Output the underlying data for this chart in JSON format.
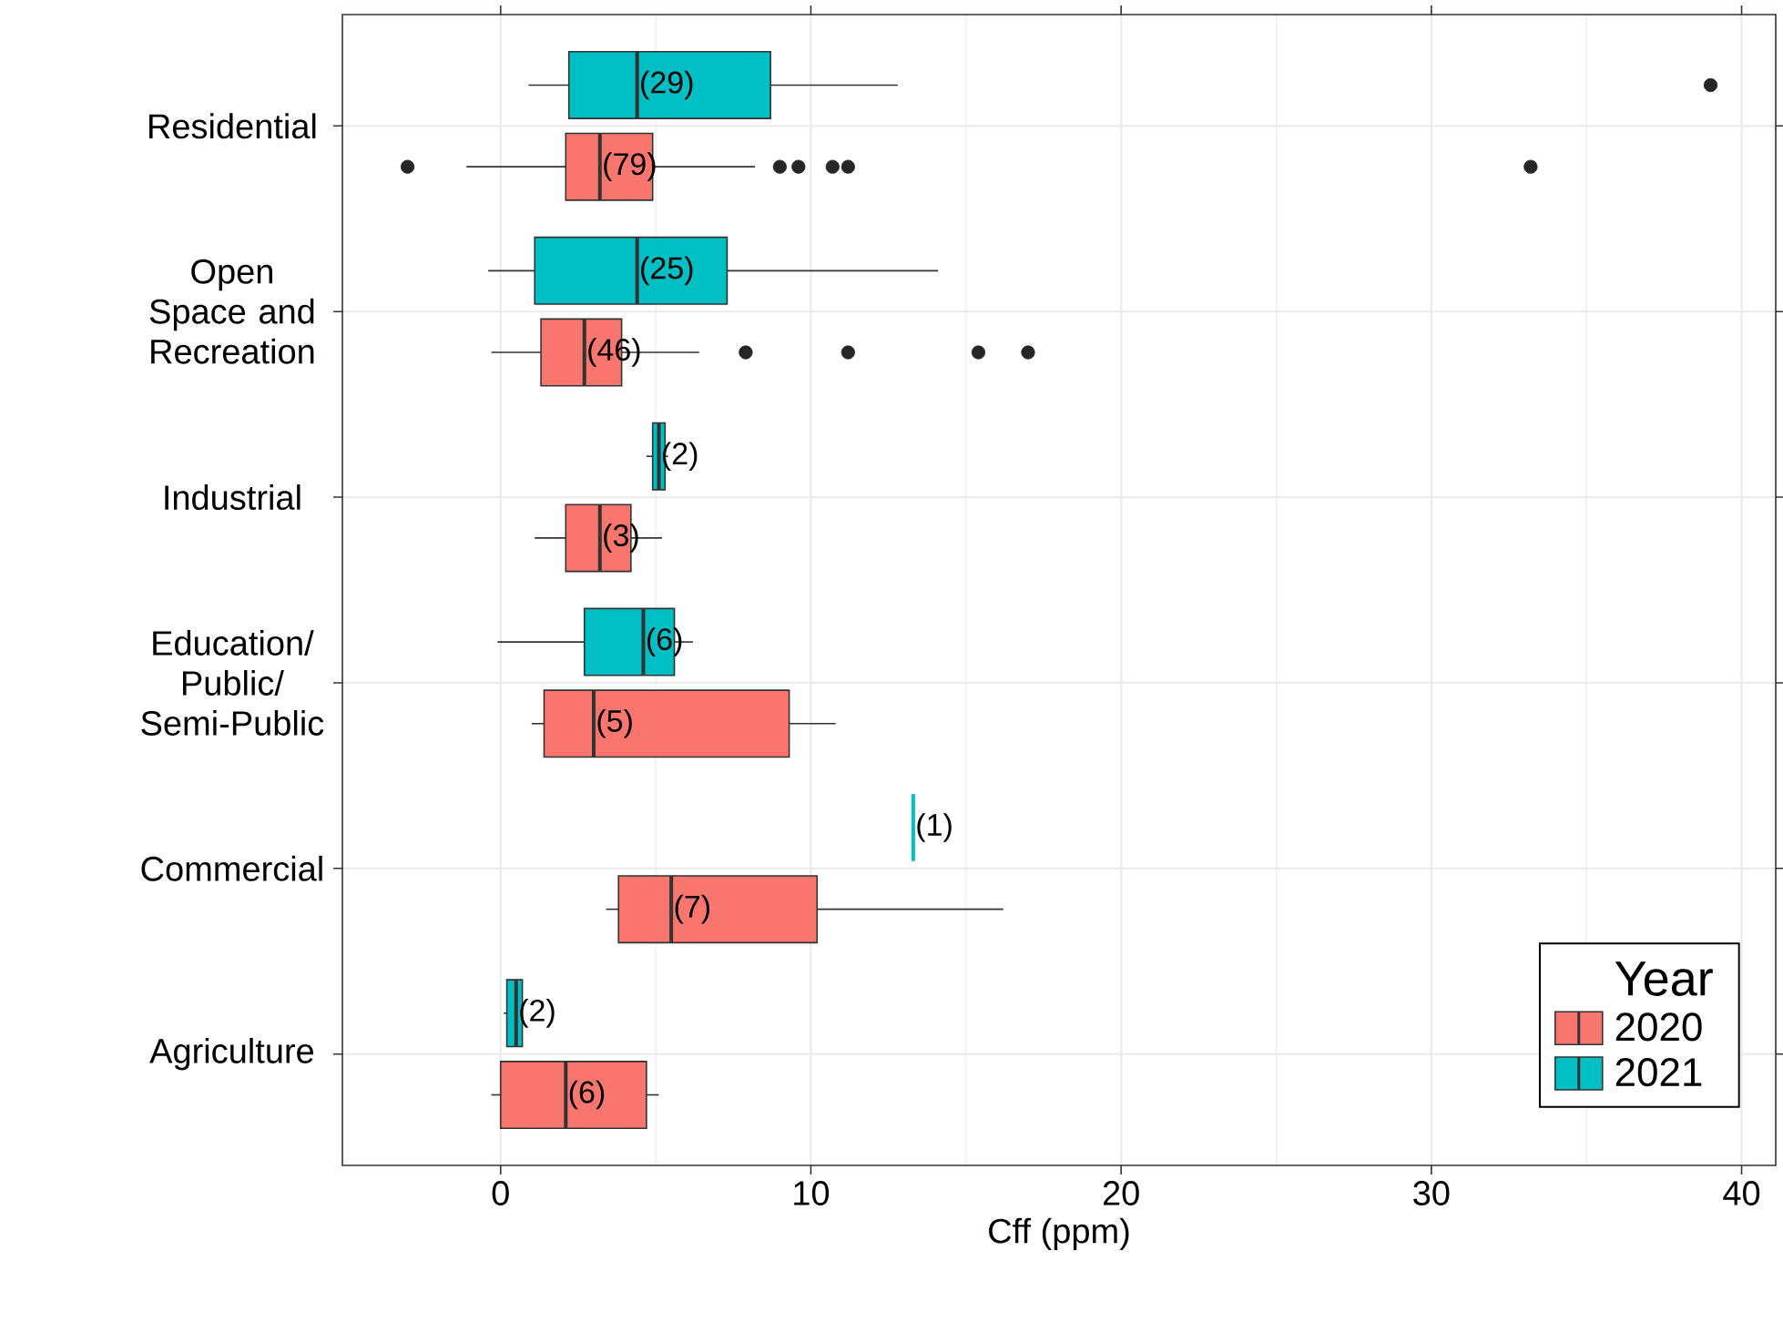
{
  "chart_data": {
    "type": "box",
    "orientation": "horizontal",
    "xlabel": "Cff (ppm)",
    "legend_title": "Year",
    "legend": "bottom right",
    "grid": true,
    "categories": [
      "Residential",
      "Open Space and Recreation",
      "Industrial",
      "Education/ Public/ Semi-Public",
      "Commercial",
      "Agriculture"
    ],
    "xlim": [
      -5.1,
      41.1
    ],
    "xticks": [
      0,
      10,
      20,
      30,
      40
    ],
    "series": [
      {
        "name": "2020",
        "color": "#f8766d",
        "value_labels": [
          "(79)",
          "(46)",
          "(3)",
          "(5)",
          "(7)",
          "(6)"
        ],
        "boxes": [
          {
            "low": -1.1,
            "q1": 2.1,
            "median": 3.2,
            "q3": 4.9,
            "high": 8.2,
            "outliers": [
              -3.0,
              9.0,
              9.6,
              10.7,
              11.2,
              33.2
            ]
          },
          {
            "low": -0.3,
            "q1": 1.3,
            "median": 2.7,
            "q3": 3.9,
            "high": 6.4,
            "outliers": [
              7.9,
              11.2,
              15.4,
              17.0
            ]
          },
          {
            "low": 1.1,
            "q1": 2.1,
            "median": 3.2,
            "q3": 4.2,
            "high": 5.2
          },
          {
            "low": 1.0,
            "q1": 1.4,
            "median": 3.0,
            "q3": 9.3,
            "high": 10.8
          },
          {
            "low": 3.4,
            "q1": 3.8,
            "median": 5.5,
            "q3": 10.2,
            "high": 16.2
          },
          {
            "low": -0.3,
            "q1": 0.0,
            "median": 2.1,
            "q3": 4.7,
            "high": 5.1
          }
        ]
      },
      {
        "name": "2021",
        "color": "#00bfc4",
        "value_labels": [
          "(29)",
          "(25)",
          "(2)",
          "(6)",
          "(1)",
          "(2)"
        ],
        "boxes": [
          {
            "low": 0.9,
            "q1": 2.2,
            "median": 4.4,
            "q3": 8.7,
            "high": 12.8,
            "outliers": [
              39.0
            ]
          },
          {
            "low": -0.4,
            "q1": 1.1,
            "median": 4.4,
            "q3": 7.3,
            "high": 14.1
          },
          {
            "low": 4.7,
            "q1": 4.9,
            "median": 5.1,
            "q3": 5.3,
            "high": 5.4
          },
          {
            "low": -0.1,
            "q1": 2.7,
            "median": 4.6,
            "q3": 5.6,
            "high": 6.2
          },
          {
            "low": 13.3,
            "q1": 13.3,
            "median": 13.3,
            "q3": 13.3,
            "high": 13.3
          },
          {
            "low": 0.1,
            "q1": 0.2,
            "median": 0.5,
            "q3": 0.7,
            "high": 0.7
          }
        ]
      }
    ]
  }
}
